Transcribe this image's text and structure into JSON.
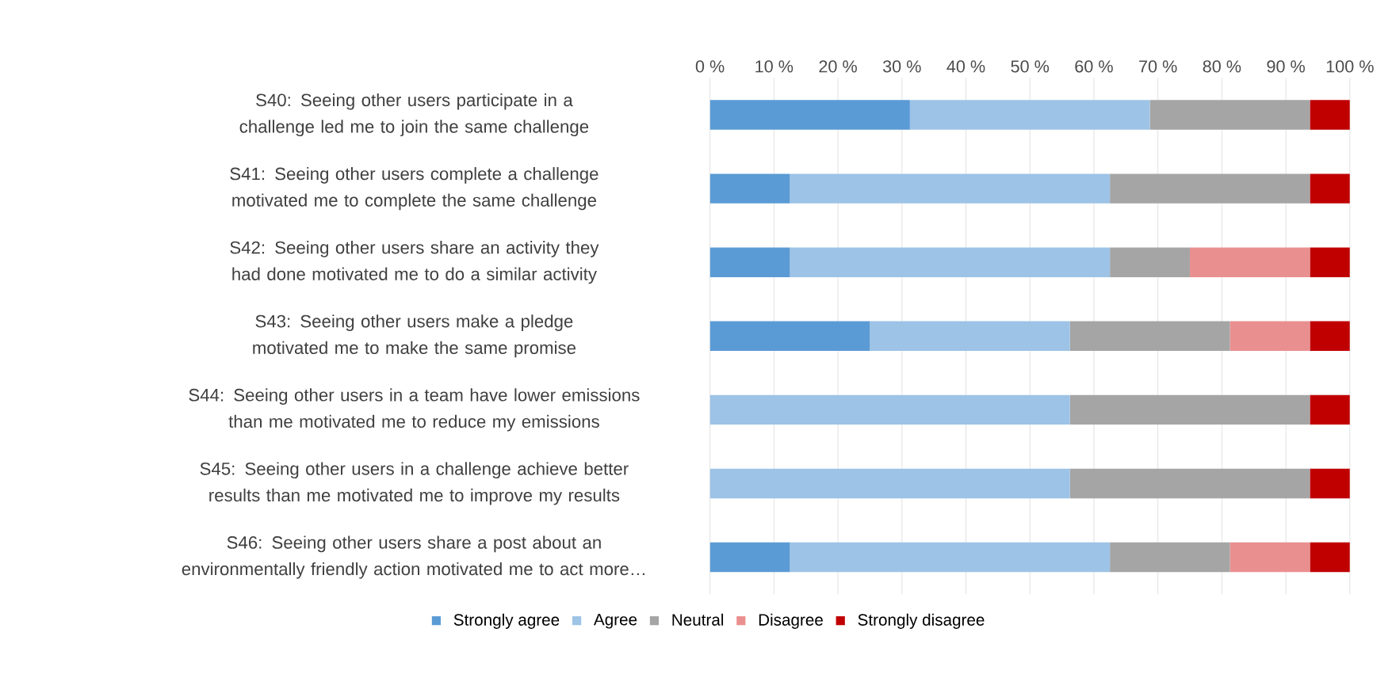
{
  "chart_data": {
    "type": "bar",
    "orientation": "horizontal",
    "stacked": true,
    "categories": [
      "S40: Seeing other users participate in a challenge led me to join the same challenge",
      "S41: Seeing other users complete a challenge motivated me to complete the same challenge",
      "S42: Seeing other users share an activity they had done motivated me to do a similar activity",
      "S43: Seeing other users make a pledge motivated me to make the same promise",
      "S44: Seeing other users in a team have lower emissions than me motivated me to reduce my emissions",
      "S45:  Seeing other users in a challenge achieve better results than me motivated me to improve my results",
      "S46: Seeing other users share a post about an environmentally friendly action motivated me to act more…"
    ],
    "series": [
      {
        "name": "Strongly agree",
        "color": "#5b9bd5",
        "values": [
          31.25,
          12.5,
          12.5,
          25,
          0,
          0,
          12.5
        ]
      },
      {
        "name": "Agree",
        "color": "#9dc3e6",
        "values": [
          37.5,
          50,
          50,
          31.25,
          56.25,
          56.25,
          50
        ]
      },
      {
        "name": "Neutral",
        "color": "#a5a5a5",
        "values": [
          25,
          31.25,
          12.5,
          25,
          37.5,
          37.5,
          18.75
        ]
      },
      {
        "name": "Disagree",
        "color": "#ea8f8f",
        "values": [
          0,
          0,
          18.75,
          12.5,
          0,
          0,
          12.5
        ]
      },
      {
        "name": "Strongly disagree",
        "color": "#c00000",
        "values": [
          6.25,
          6.25,
          6.25,
          6.25,
          6.25,
          6.25,
          6.25
        ]
      }
    ],
    "xlim": [
      0,
      100
    ],
    "xticks": [
      {
        "value": 0,
        "label": "0 %"
      },
      {
        "value": 10,
        "label": "10 %"
      },
      {
        "value": 20,
        "label": "20 %"
      },
      {
        "value": 30,
        "label": "30 %"
      },
      {
        "value": 40,
        "label": "40 %"
      },
      {
        "value": 50,
        "label": "50 %"
      },
      {
        "value": 60,
        "label": "60 %"
      },
      {
        "value": 70,
        "label": "70 %"
      },
      {
        "value": 80,
        "label": "80 %"
      },
      {
        "value": 90,
        "label": "90 %"
      },
      {
        "value": 100,
        "label": "100 %"
      }
    ],
    "grid": "x",
    "legend": "bottom"
  }
}
